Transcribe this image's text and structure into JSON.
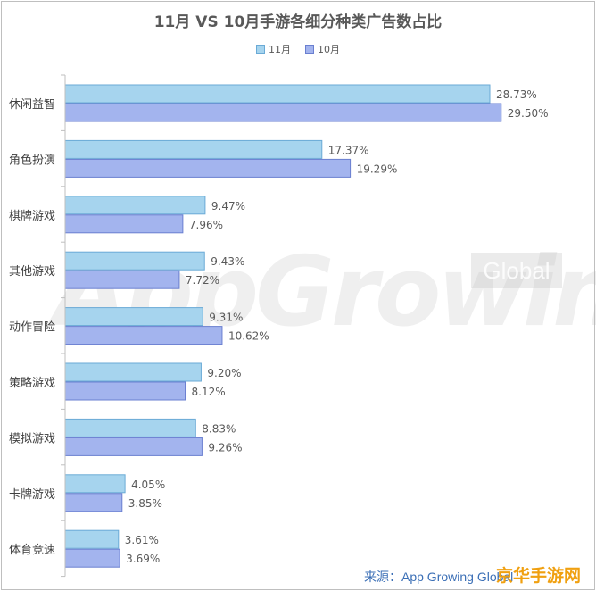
{
  "chart_data": {
    "type": "bar",
    "orientation": "horizontal",
    "title": "11月 VS 10月手游各细分种类广告数占比",
    "categories": [
      "休闲益智",
      "角色扮演",
      "棋牌游戏",
      "其他游戏",
      "动作冒险",
      "策略游戏",
      "模拟游戏",
      "卡牌游戏",
      "体育竞速"
    ],
    "series": [
      {
        "name": "11月",
        "values": [
          28.73,
          17.37,
          9.47,
          9.43,
          9.31,
          9.2,
          8.83,
          4.05,
          3.61
        ],
        "labels": [
          "28.73%",
          "17.37%",
          "9.47%",
          "9.43%",
          "9.31%",
          "9.20%",
          "8.83%",
          "4.05%",
          "3.61%"
        ]
      },
      {
        "name": "10月",
        "values": [
          29.5,
          19.29,
          7.96,
          7.72,
          10.62,
          8.12,
          9.26,
          3.85,
          3.69
        ],
        "labels": [
          "29.50%",
          "19.29%",
          "7.96%",
          "7.72%",
          "10.62%",
          "8.12%",
          "9.26%",
          "3.85%",
          "3.69%"
        ]
      }
    ],
    "xlim": [
      0,
      35
    ],
    "grid": false,
    "legend_position": "top-center",
    "colors": {
      "s11": "#a6d4ee",
      "s11_stroke": "#6aaad6",
      "s10": "#a3b4ee",
      "s10_stroke": "#6a7fd0"
    }
  },
  "watermark": {
    "main": "AppGrowing",
    "sub": "Global"
  },
  "source": "来源：App Growing Global",
  "badge": "京华手游网"
}
